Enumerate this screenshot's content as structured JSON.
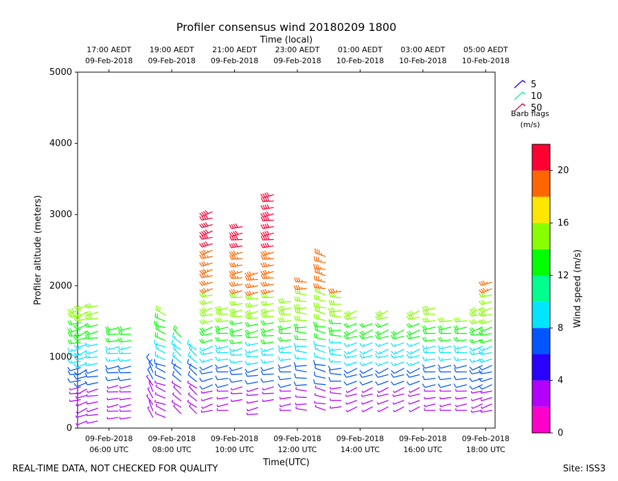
{
  "chart_data": {
    "type": "wind-barb-time-height",
    "title": "Profiler consensus wind 20180209 1800",
    "top_axis_title": "Time (local)",
    "xlabel": "Time(UTC)",
    "ylabel": "Profiler altitude (meters)",
    "colorbar_label": "Wind speed (m/s)",
    "x_range_hours_utc": [
      5.0,
      18.3
    ],
    "ylim": [
      0,
      5000
    ],
    "y_ticks": [
      0,
      1000,
      2000,
      3000,
      4000,
      5000
    ],
    "bottom_ticks": [
      {
        "hour": 6,
        "date": "09-Feb-2018",
        "time": "06:00 UTC"
      },
      {
        "hour": 8,
        "date": "09-Feb-2018",
        "time": "08:00 UTC"
      },
      {
        "hour": 10,
        "date": "09-Feb-2018",
        "time": "10:00 UTC"
      },
      {
        "hour": 12,
        "date": "09-Feb-2018",
        "time": "12:00 UTC"
      },
      {
        "hour": 14,
        "date": "09-Feb-2018",
        "time": "14:00 UTC"
      },
      {
        "hour": 16,
        "date": "09-Feb-2018",
        "time": "16:00 UTC"
      },
      {
        "hour": 18,
        "date": "09-Feb-2018",
        "time": "18:00 UTC"
      }
    ],
    "top_ticks": [
      {
        "hour": 6,
        "time": "17:00 AEDT",
        "date": "09-Feb-2018"
      },
      {
        "hour": 8,
        "time": "19:00 AEDT",
        "date": "09-Feb-2018"
      },
      {
        "hour": 10,
        "time": "21:00 AEDT",
        "date": "09-Feb-2018"
      },
      {
        "hour": 12,
        "time": "23:00 AEDT",
        "date": "09-Feb-2018"
      },
      {
        "hour": 14,
        "time": "01:00 AEDT",
        "date": "10-Feb-2018"
      },
      {
        "hour": 16,
        "time": "03:00 AEDT",
        "date": "10-Feb-2018"
      },
      {
        "hour": 18,
        "time": "05:00 AEDT",
        "date": "10-Feb-2018"
      }
    ],
    "colorbar": {
      "min": 0,
      "max": 22,
      "ticks": [
        0,
        4,
        8,
        12,
        16,
        20
      ],
      "bands": [
        "#ff00cc",
        "#b400ff",
        "#2a00ff",
        "#0055ff",
        "#00e6ff",
        "#00ff8c",
        "#00ff00",
        "#88ff00",
        "#ffe600",
        "#ff6600",
        "#ff0033"
      ]
    },
    "legend": {
      "title_line1": "Barb flags",
      "title_line2": "(m/s)",
      "entries": [
        {
          "label": "5",
          "color": "#2a00ff"
        },
        {
          "label": "10",
          "color": "#00ff8c"
        },
        {
          "label": "50",
          "color": "#ff0033"
        }
      ]
    },
    "profiles": [
      {
        "t": 5.1,
        "bottom": 400,
        "top": 1700,
        "dir": 250
      },
      {
        "t": 5.3,
        "bottom": 100,
        "top": 1750,
        "dir": 240
      },
      {
        "t": 5.65,
        "bottom": 100,
        "top": 1750,
        "dir": 250
      },
      {
        "t": 6.3,
        "bottom": 150,
        "top": 1450,
        "dir": 250
      },
      {
        "t": 6.7,
        "bottom": 150,
        "top": 1450,
        "dir": 250
      },
      {
        "t": 7.4,
        "bottom": 150,
        "top": 900,
        "dir": 320
      },
      {
        "t": 7.8,
        "bottom": 150,
        "top": 1600,
        "dir": 280
      },
      {
        "t": 8.3,
        "bottom": 200,
        "top": 1350,
        "dir": 300
      },
      {
        "t": 8.8,
        "bottom": 200,
        "top": 1100,
        "dir": 300
      },
      {
        "t": 9.3,
        "bottom": 250,
        "top": 3100,
        "dir": 240
      },
      {
        "t": 9.8,
        "bottom": 250,
        "top": 1700,
        "dir": 250
      },
      {
        "t": 10.25,
        "bottom": 400,
        "top": 2900,
        "dir": 250
      },
      {
        "t": 10.75,
        "bottom": 200,
        "top": 2200,
        "dir": 250
      },
      {
        "t": 11.25,
        "bottom": 400,
        "top": 3350,
        "dir": 250
      },
      {
        "t": 11.8,
        "bottom": 250,
        "top": 1850,
        "dir": 250
      },
      {
        "t": 12.3,
        "bottom": 250,
        "top": 2100,
        "dir": 260
      },
      {
        "t": 12.9,
        "bottom": 250,
        "top": 2450,
        "dir": 270
      },
      {
        "t": 13.4,
        "bottom": 300,
        "top": 2000,
        "dir": 260
      },
      {
        "t": 13.9,
        "bottom": 300,
        "top": 1700,
        "dir": 240
      },
      {
        "t": 14.4,
        "bottom": 300,
        "top": 1500,
        "dir": 240
      },
      {
        "t": 14.9,
        "bottom": 300,
        "top": 1700,
        "dir": 240
      },
      {
        "t": 15.4,
        "bottom": 300,
        "top": 1450,
        "dir": 240
      },
      {
        "t": 15.9,
        "bottom": 300,
        "top": 1700,
        "dir": 240
      },
      {
        "t": 16.4,
        "bottom": 250,
        "top": 1700,
        "dir": 250
      },
      {
        "t": 16.9,
        "bottom": 250,
        "top": 1550,
        "dir": 250
      },
      {
        "t": 17.4,
        "bottom": 250,
        "top": 1550,
        "dir": 250
      },
      {
        "t": 17.9,
        "bottom": 250,
        "top": 1750,
        "dir": 240
      },
      {
        "t": 18.2,
        "bottom": 250,
        "top": 2100,
        "dir": 240
      }
    ],
    "speed_bands": [
      {
        "max_alt": 600,
        "speed": 3
      },
      {
        "max_alt": 900,
        "speed": 7
      },
      {
        "max_alt": 1200,
        "speed": 9
      },
      {
        "max_alt": 1500,
        "speed": 12
      },
      {
        "max_alt": 1900,
        "speed": 15
      },
      {
        "max_alt": 2500,
        "speed": 19
      },
      {
        "max_alt": 5000,
        "speed": 21
      }
    ]
  },
  "footer": {
    "left": "REAL-TIME DATA, NOT CHECKED FOR QUALITY",
    "right": "Site: ISS3"
  }
}
